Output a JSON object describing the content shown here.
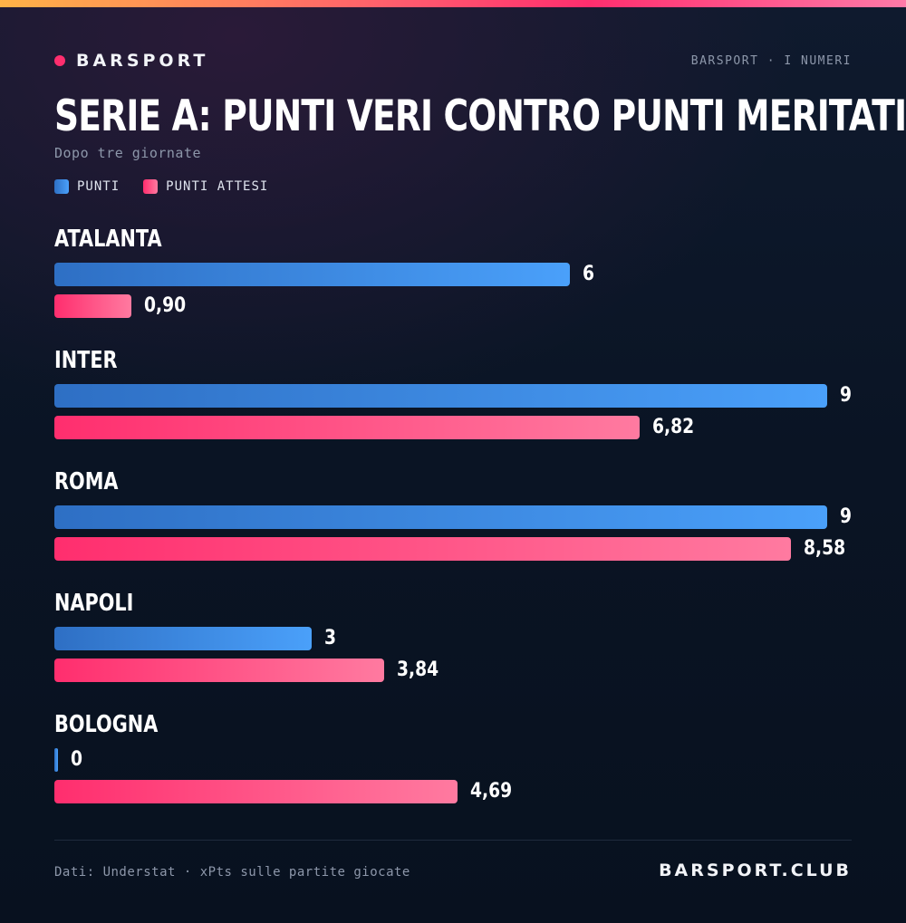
{
  "brand": {
    "name": "BARSPORT",
    "tagline": "BARSPORT · I NUMERI"
  },
  "footer": {
    "source": "Dati: Understat · xPts sulle partite giocate",
    "site": "BARSPORT.CLUB"
  },
  "colors": {
    "punti": "#4aa0fa",
    "punti_attesi": "#ff2e6e",
    "accent": "#ff2e6e"
  },
  "chart_data": {
    "type": "bar",
    "orientation": "horizontal",
    "title": "SERIE A: PUNTI VERI CONTRO PUNTI MERITATI",
    "subtitle": "Dopo tre giornate",
    "categories": [
      "ATALANTA",
      "INTER",
      "ROMA",
      "NAPOLI",
      "BOLOGNA"
    ],
    "series": [
      {
        "name": "PUNTI",
        "values": [
          6,
          9,
          9,
          3,
          0
        ],
        "labels": [
          "6",
          "9",
          "9",
          "3",
          "0"
        ]
      },
      {
        "name": "PUNTI ATTESI",
        "values": [
          0.9,
          6.82,
          8.58,
          3.84,
          4.69
        ],
        "labels": [
          "0,90",
          "6,82",
          "8,58",
          "3,84",
          "4,69"
        ]
      }
    ],
    "xlim": [
      0,
      9
    ],
    "legend": "top-left",
    "grid": false
  }
}
